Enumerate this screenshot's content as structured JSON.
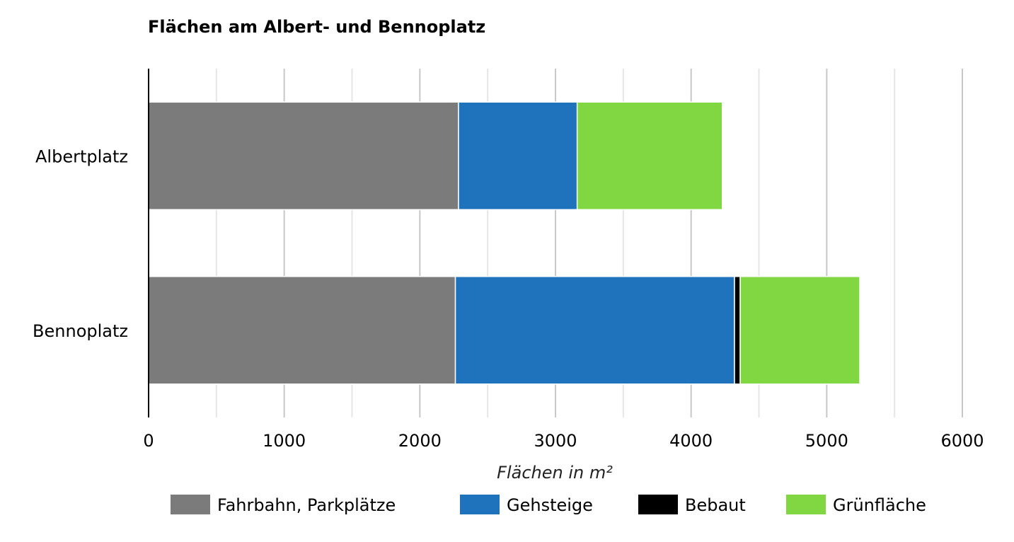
{
  "chart_data": {
    "type": "bar",
    "orientation": "horizontal",
    "stacked": true,
    "title": "Flächen am Albert- und Bennoplatz",
    "xlabel": "Flächen in m²",
    "ylabel": "",
    "categories": [
      "Albertplatz",
      "Bennoplatz"
    ],
    "xlim": [
      0,
      6000
    ],
    "xticks": [
      "0",
      "1000",
      "2000",
      "3000",
      "4000",
      "5000",
      "6000"
    ],
    "grid": true,
    "legend_position": "bottom",
    "series": [
      {
        "name": "Fahrbahn, Parkplätze",
        "color": "#7b7b7b",
        "values": [
          2285,
          2262
        ]
      },
      {
        "name": "Gehsteige",
        "color": "#1f73bd",
        "values": [
          875,
          2058
        ]
      },
      {
        "name": "Bebaut",
        "color": "#000000",
        "values": [
          0,
          42
        ]
      },
      {
        "name": "Grünfläche",
        "color": "#80d742",
        "values": [
          1070,
          882
        ]
      }
    ]
  }
}
